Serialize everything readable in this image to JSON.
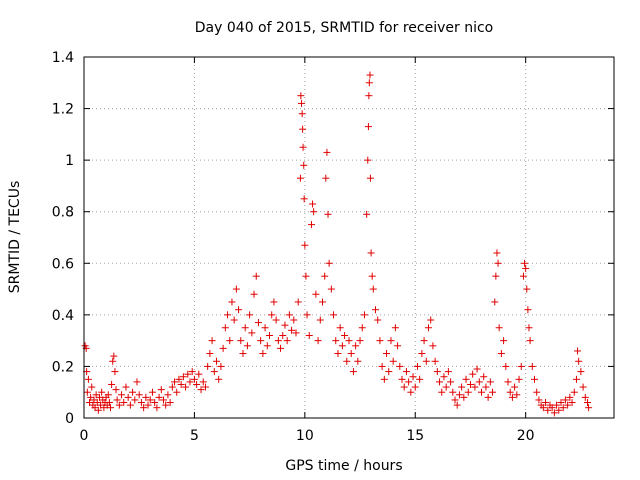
{
  "chart_data": {
    "type": "scatter",
    "title": "Day 040 of 2015, SRMTID for receiver nico",
    "xlabel": "GPS time / hours",
    "ylabel": "SRMTID / TECUs",
    "xlim": [
      0,
      24
    ],
    "ylim": [
      0,
      1.4
    ],
    "x_ticks": [
      0,
      5,
      10,
      15,
      20
    ],
    "x_tick_labels": [
      "0",
      "5",
      "10",
      "15",
      "20"
    ],
    "y_ticks": [
      0,
      0.2,
      0.4,
      0.6,
      0.8,
      1.0,
      1.2,
      1.4
    ],
    "y_tick_labels": [
      "0",
      "0.2",
      "0.4",
      "0.6",
      "0.8",
      "1",
      "1.2",
      "1.4"
    ],
    "grid": true,
    "marker": "+",
    "marker_color": "#e00000",
    "series": [
      {
        "name": "SRMTID",
        "points": [
          [
            0.05,
            0.28
          ],
          [
            0.1,
            0.27
          ],
          [
            0.12,
            0.18
          ],
          [
            0.15,
            0.1
          ],
          [
            0.2,
            0.15
          ],
          [
            0.25,
            0.06
          ],
          [
            0.3,
            0.08
          ],
          [
            0.35,
            0.12
          ],
          [
            0.4,
            0.05
          ],
          [
            0.45,
            0.07
          ],
          [
            0.5,
            0.04
          ],
          [
            0.55,
            0.09
          ],
          [
            0.6,
            0.06
          ],
          [
            0.65,
            0.03
          ],
          [
            0.7,
            0.08
          ],
          [
            0.75,
            0.05
          ],
          [
            0.8,
            0.1
          ],
          [
            0.85,
            0.07
          ],
          [
            0.9,
            0.04
          ],
          [
            0.95,
            0.06
          ],
          [
            1.0,
            0.08
          ],
          [
            1.05,
            0.05
          ],
          [
            1.1,
            0.09
          ],
          [
            1.15,
            0.06
          ],
          [
            1.2,
            0.04
          ],
          [
            1.25,
            0.13
          ],
          [
            1.3,
            0.22
          ],
          [
            1.35,
            0.24
          ],
          [
            1.4,
            0.18
          ],
          [
            1.45,
            0.11
          ],
          [
            1.5,
            0.07
          ],
          [
            1.6,
            0.05
          ],
          [
            1.7,
            0.09
          ],
          [
            1.8,
            0.06
          ],
          [
            1.9,
            0.12
          ],
          [
            2.0,
            0.08
          ],
          [
            2.1,
            0.05
          ],
          [
            2.2,
            0.1
          ],
          [
            2.3,
            0.07
          ],
          [
            2.4,
            0.14
          ],
          [
            2.5,
            0.09
          ],
          [
            2.6,
            0.06
          ],
          [
            2.7,
            0.04
          ],
          [
            2.8,
            0.08
          ],
          [
            2.9,
            0.05
          ],
          [
            3.0,
            0.07
          ],
          [
            3.1,
            0.1
          ],
          [
            3.2,
            0.06
          ],
          [
            3.3,
            0.04
          ],
          [
            3.4,
            0.08
          ],
          [
            3.5,
            0.11
          ],
          [
            3.6,
            0.07
          ],
          [
            3.7,
            0.05
          ],
          [
            3.8,
            0.09
          ],
          [
            3.9,
            0.06
          ],
          [
            4.0,
            0.12
          ],
          [
            4.1,
            0.14
          ],
          [
            4.2,
            0.1
          ],
          [
            4.3,
            0.15
          ],
          [
            4.4,
            0.13
          ],
          [
            4.5,
            0.16
          ],
          [
            4.6,
            0.12
          ],
          [
            4.7,
            0.17
          ],
          [
            4.8,
            0.14
          ],
          [
            4.9,
            0.18
          ],
          [
            5.0,
            0.15
          ],
          [
            5.1,
            0.13
          ],
          [
            5.2,
            0.17
          ],
          [
            5.3,
            0.11
          ],
          [
            5.4,
            0.14
          ],
          [
            5.5,
            0.12
          ],
          [
            5.6,
            0.2
          ],
          [
            5.7,
            0.25
          ],
          [
            5.8,
            0.3
          ],
          [
            5.9,
            0.18
          ],
          [
            6.0,
            0.22
          ],
          [
            6.1,
            0.15
          ],
          [
            6.2,
            0.2
          ],
          [
            6.3,
            0.27
          ],
          [
            6.4,
            0.35
          ],
          [
            6.5,
            0.4
          ],
          [
            6.6,
            0.3
          ],
          [
            6.7,
            0.45
          ],
          [
            6.8,
            0.38
          ],
          [
            6.9,
            0.5
          ],
          [
            7.0,
            0.42
          ],
          [
            7.1,
            0.3
          ],
          [
            7.2,
            0.25
          ],
          [
            7.3,
            0.35
          ],
          [
            7.4,
            0.28
          ],
          [
            7.5,
            0.4
          ],
          [
            7.6,
            0.33
          ],
          [
            7.7,
            0.48
          ],
          [
            7.8,
            0.55
          ],
          [
            7.9,
            0.37
          ],
          [
            8.0,
            0.3
          ],
          [
            8.1,
            0.25
          ],
          [
            8.2,
            0.35
          ],
          [
            8.3,
            0.28
          ],
          [
            8.4,
            0.32
          ],
          [
            8.5,
            0.4
          ],
          [
            8.6,
            0.45
          ],
          [
            8.7,
            0.38
          ],
          [
            8.8,
            0.3
          ],
          [
            8.9,
            0.27
          ],
          [
            9.0,
            0.32
          ],
          [
            9.1,
            0.36
          ],
          [
            9.2,
            0.3
          ],
          [
            9.3,
            0.4
          ],
          [
            9.4,
            0.34
          ],
          [
            9.5,
            0.38
          ],
          [
            9.6,
            0.33
          ],
          [
            9.7,
            0.45
          ],
          [
            9.8,
            0.93
          ],
          [
            9.82,
            1.25
          ],
          [
            9.85,
            1.22
          ],
          [
            9.88,
            1.18
          ],
          [
            9.9,
            1.12
          ],
          [
            9.92,
            1.05
          ],
          [
            9.95,
            0.98
          ],
          [
            9.97,
            0.85
          ],
          [
            10.0,
            0.67
          ],
          [
            10.05,
            0.55
          ],
          [
            10.1,
            0.4
          ],
          [
            10.2,
            0.32
          ],
          [
            10.3,
            0.75
          ],
          [
            10.35,
            0.83
          ],
          [
            10.4,
            0.8
          ],
          [
            10.5,
            0.48
          ],
          [
            10.6,
            0.3
          ],
          [
            10.7,
            0.38
          ],
          [
            10.8,
            0.45
          ],
          [
            10.9,
            0.55
          ],
          [
            10.95,
            0.93
          ],
          [
            11.0,
            1.03
          ],
          [
            11.05,
            0.79
          ],
          [
            11.1,
            0.6
          ],
          [
            11.2,
            0.5
          ],
          [
            11.3,
            0.4
          ],
          [
            11.4,
            0.3
          ],
          [
            11.5,
            0.25
          ],
          [
            11.6,
            0.35
          ],
          [
            11.7,
            0.28
          ],
          [
            11.8,
            0.32
          ],
          [
            11.9,
            0.22
          ],
          [
            12.0,
            0.3
          ],
          [
            12.1,
            0.25
          ],
          [
            12.2,
            0.18
          ],
          [
            12.3,
            0.28
          ],
          [
            12.4,
            0.22
          ],
          [
            12.5,
            0.3
          ],
          [
            12.6,
            0.35
          ],
          [
            12.7,
            0.4
          ],
          [
            12.8,
            0.79
          ],
          [
            12.85,
            1.0
          ],
          [
            12.88,
            1.13
          ],
          [
            12.9,
            1.25
          ],
          [
            12.92,
            1.3
          ],
          [
            12.95,
            1.33
          ],
          [
            12.97,
            0.93
          ],
          [
            13.0,
            0.64
          ],
          [
            13.05,
            0.55
          ],
          [
            13.1,
            0.5
          ],
          [
            13.2,
            0.42
          ],
          [
            13.3,
            0.38
          ],
          [
            13.4,
            0.3
          ],
          [
            13.5,
            0.2
          ],
          [
            13.6,
            0.15
          ],
          [
            13.7,
            0.25
          ],
          [
            13.8,
            0.18
          ],
          [
            13.9,
            0.3
          ],
          [
            14.0,
            0.22
          ],
          [
            14.1,
            0.35
          ],
          [
            14.2,
            0.28
          ],
          [
            14.3,
            0.2
          ],
          [
            14.4,
            0.15
          ],
          [
            14.5,
            0.12
          ],
          [
            14.6,
            0.18
          ],
          [
            14.7,
            0.14
          ],
          [
            14.8,
            0.1
          ],
          [
            14.9,
            0.16
          ],
          [
            15.0,
            0.12
          ],
          [
            15.1,
            0.2
          ],
          [
            15.2,
            0.15
          ],
          [
            15.3,
            0.25
          ],
          [
            15.4,
            0.3
          ],
          [
            15.5,
            0.22
          ],
          [
            15.6,
            0.35
          ],
          [
            15.7,
            0.38
          ],
          [
            15.8,
            0.28
          ],
          [
            15.9,
            0.22
          ],
          [
            16.0,
            0.18
          ],
          [
            16.1,
            0.14
          ],
          [
            16.2,
            0.1
          ],
          [
            16.3,
            0.16
          ],
          [
            16.4,
            0.12
          ],
          [
            16.5,
            0.18
          ],
          [
            16.6,
            0.14
          ],
          [
            16.7,
            0.1
          ],
          [
            16.8,
            0.07
          ],
          [
            16.9,
            0.05
          ],
          [
            17.0,
            0.09
          ],
          [
            17.1,
            0.12
          ],
          [
            17.2,
            0.08
          ],
          [
            17.3,
            0.15
          ],
          [
            17.4,
            0.1
          ],
          [
            17.5,
            0.13
          ],
          [
            17.6,
            0.17
          ],
          [
            17.7,
            0.12
          ],
          [
            17.8,
            0.19
          ],
          [
            17.9,
            0.14
          ],
          [
            18.0,
            0.1
          ],
          [
            18.1,
            0.16
          ],
          [
            18.2,
            0.12
          ],
          [
            18.3,
            0.08
          ],
          [
            18.4,
            0.14
          ],
          [
            18.5,
            0.1
          ],
          [
            18.6,
            0.45
          ],
          [
            18.65,
            0.55
          ],
          [
            18.7,
            0.64
          ],
          [
            18.75,
            0.6
          ],
          [
            18.8,
            0.35
          ],
          [
            18.9,
            0.25
          ],
          [
            19.0,
            0.3
          ],
          [
            19.1,
            0.2
          ],
          [
            19.2,
            0.14
          ],
          [
            19.3,
            0.1
          ],
          [
            19.4,
            0.08
          ],
          [
            19.5,
            0.12
          ],
          [
            19.6,
            0.09
          ],
          [
            19.7,
            0.15
          ],
          [
            19.8,
            0.2
          ],
          [
            19.9,
            0.55
          ],
          [
            19.95,
            0.6
          ],
          [
            20.0,
            0.58
          ],
          [
            20.05,
            0.5
          ],
          [
            20.1,
            0.42
          ],
          [
            20.15,
            0.35
          ],
          [
            20.2,
            0.3
          ],
          [
            20.3,
            0.2
          ],
          [
            20.4,
            0.15
          ],
          [
            20.5,
            0.1
          ],
          [
            20.6,
            0.07
          ],
          [
            20.7,
            0.05
          ],
          [
            20.8,
            0.04
          ],
          [
            20.9,
            0.06
          ],
          [
            21.0,
            0.03
          ],
          [
            21.1,
            0.05
          ],
          [
            21.2,
            0.04
          ],
          [
            21.3,
            0.02
          ],
          [
            21.4,
            0.05
          ],
          [
            21.5,
            0.03
          ],
          [
            21.6,
            0.06
          ],
          [
            21.7,
            0.04
          ],
          [
            21.8,
            0.07
          ],
          [
            21.9,
            0.05
          ],
          [
            22.0,
            0.08
          ],
          [
            22.1,
            0.06
          ],
          [
            22.2,
            0.1
          ],
          [
            22.3,
            0.15
          ],
          [
            22.35,
            0.26
          ],
          [
            22.4,
            0.22
          ],
          [
            22.5,
            0.18
          ],
          [
            22.6,
            0.12
          ],
          [
            22.7,
            0.08
          ],
          [
            22.8,
            0.06
          ],
          [
            22.85,
            0.04
          ]
        ]
      }
    ]
  }
}
